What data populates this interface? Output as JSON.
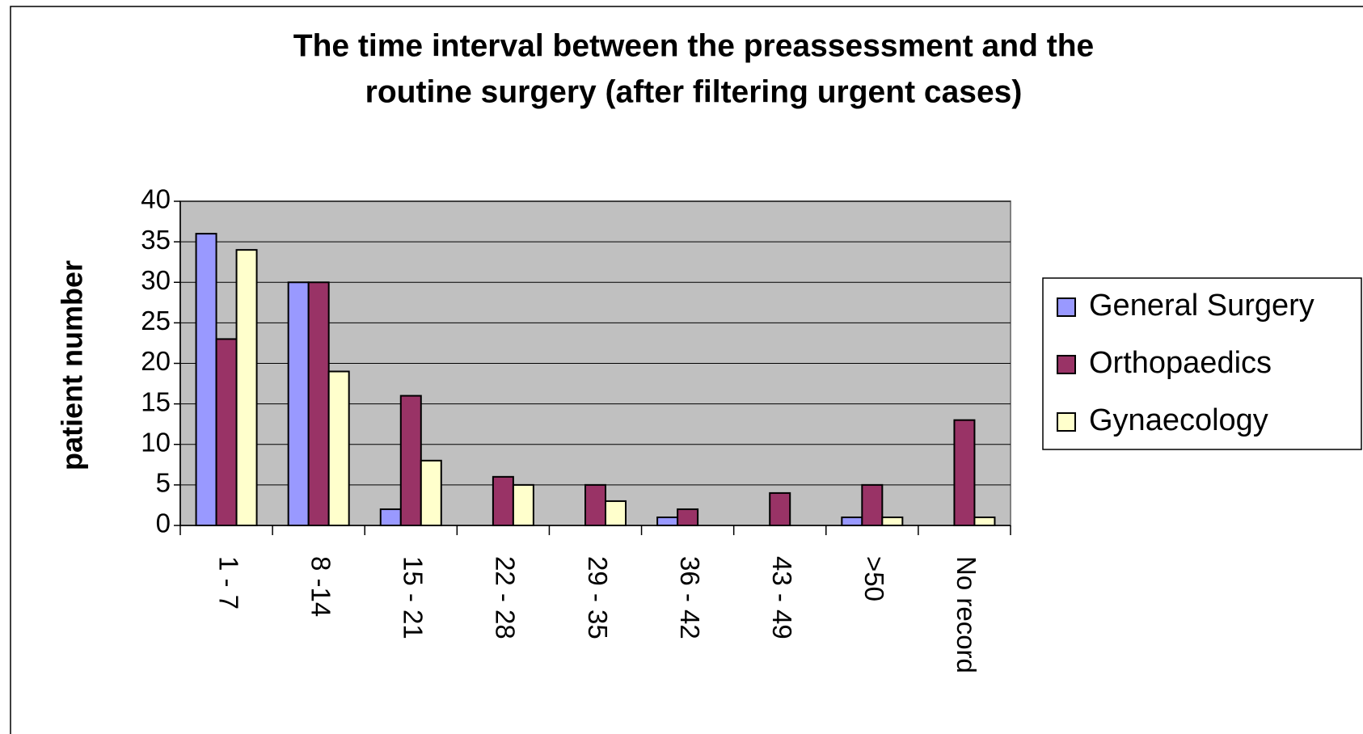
{
  "chart_data": {
    "type": "bar",
    "title": [
      "The time interval between the preassessment and the",
      "routine surgery (after filtering urgent cases)"
    ],
    "y_label": "patient number",
    "categories": [
      "1 - 7",
      "8 -14",
      "15 - 21",
      "22 - 28",
      "29 - 35",
      "36 - 42",
      "43 - 49",
      ">50",
      "No record"
    ],
    "series": [
      {
        "name": "General Surgery",
        "color": "#9999ff",
        "values": [
          36,
          30,
          2,
          0,
          0,
          1,
          0,
          1,
          0
        ]
      },
      {
        "name": "Orthopaedics",
        "color": "#993366",
        "values": [
          23,
          30,
          16,
          6,
          5,
          2,
          4,
          5,
          13
        ]
      },
      {
        "name": "Gynaecology",
        "color": "#ffffcc",
        "values": [
          34,
          19,
          8,
          5,
          3,
          0,
          0,
          1,
          1
        ]
      }
    ],
    "ylim": [
      0,
      40
    ],
    "yticks": [
      0,
      5,
      10,
      15,
      20,
      25,
      30,
      35,
      40
    ],
    "grid": true,
    "legend": "right"
  }
}
